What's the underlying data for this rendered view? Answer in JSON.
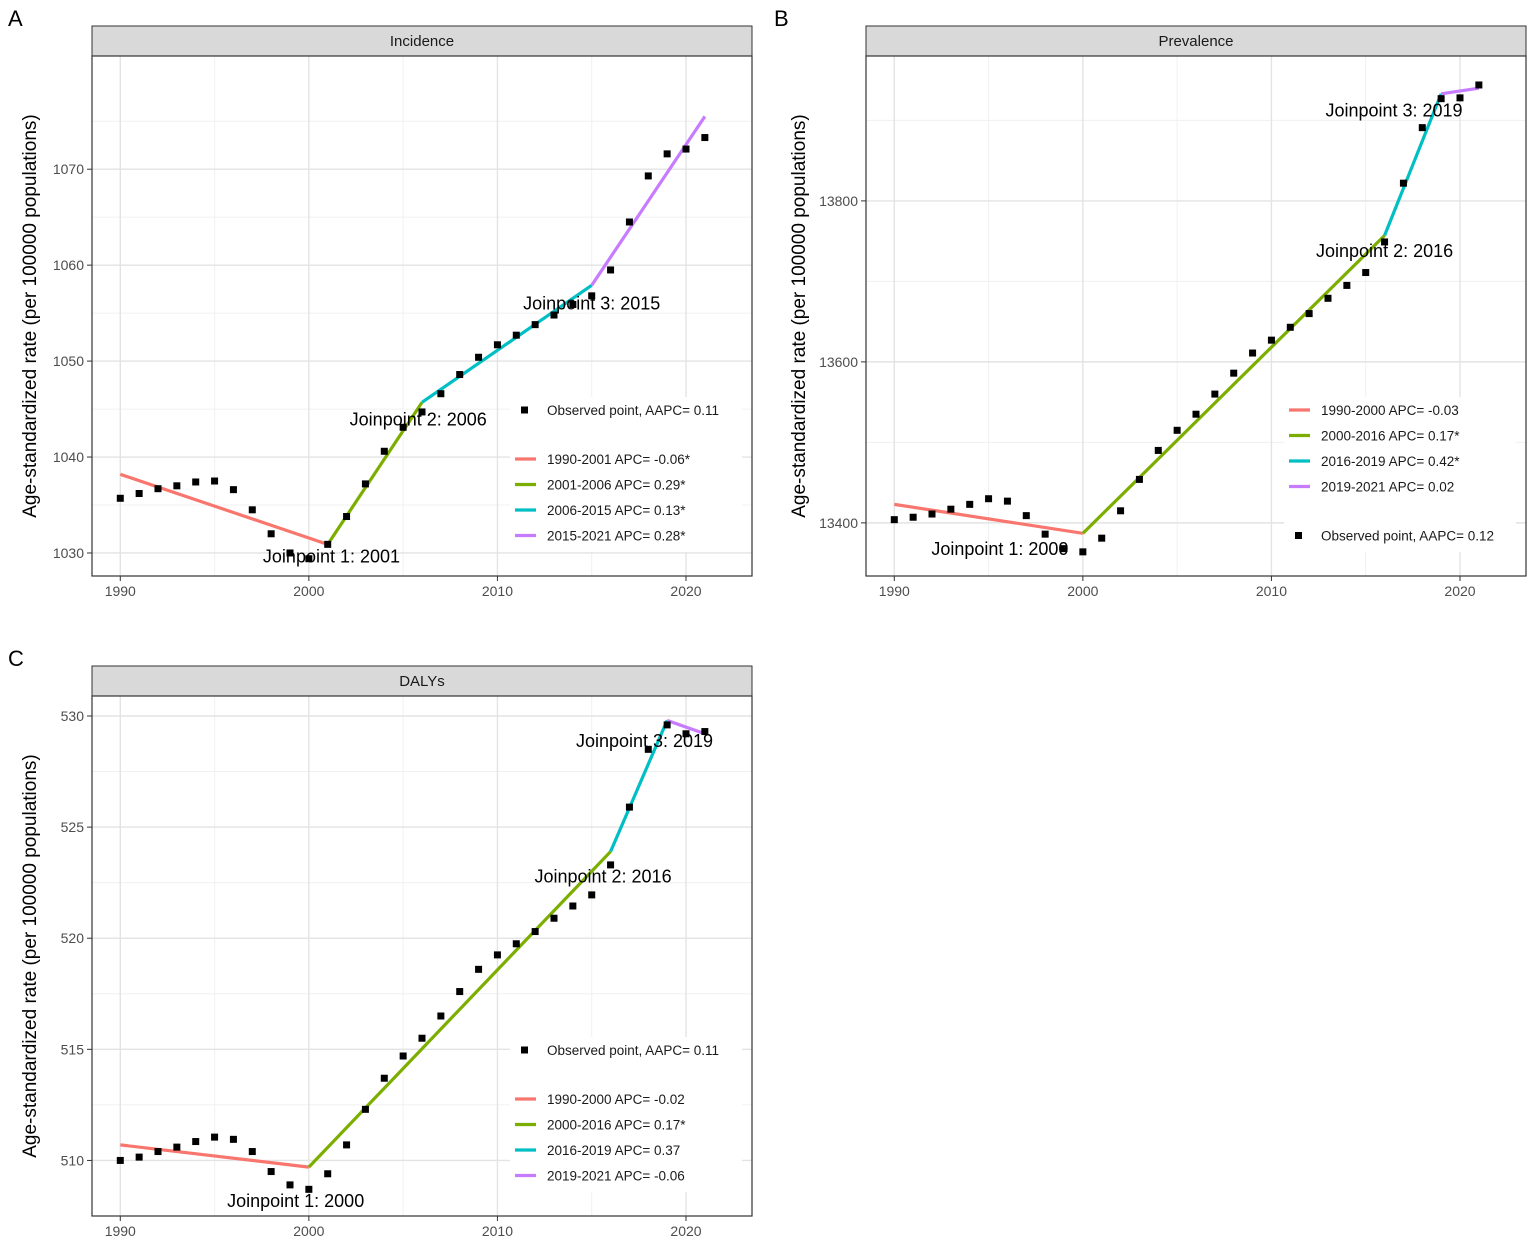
{
  "chart_data": [
    {
      "type": "line",
      "panel_label": "A",
      "title": "Incidence",
      "xlabel": "",
      "ylabel": "Age-standardized rate (per 100000 populations)",
      "xlim": [
        1988.5,
        2023.5
      ],
      "ylim": [
        1027.6,
        1081.8
      ],
      "xticks": [
        1990,
        2000,
        2010,
        2020
      ],
      "yticks": [
        1030,
        1040,
        1050,
        1060,
        1070
      ],
      "observed": {
        "x": [
          1990,
          1991,
          1992,
          1993,
          1994,
          1995,
          1996,
          1997,
          1998,
          1999,
          2000,
          2001,
          2002,
          2003,
          2004,
          2005,
          2006,
          2007,
          2008,
          2009,
          2010,
          2011,
          2012,
          2013,
          2014,
          2015,
          2016,
          2017,
          2018,
          2019,
          2020,
          2021
        ],
        "y": [
          1035.7,
          1036.2,
          1036.7,
          1037.0,
          1037.4,
          1037.5,
          1036.6,
          1034.5,
          1032.0,
          1030.0,
          1029.4,
          1030.9,
          1033.8,
          1037.2,
          1040.6,
          1043.1,
          1044.7,
          1046.6,
          1048.6,
          1050.4,
          1051.7,
          1052.7,
          1053.8,
          1054.8,
          1055.9,
          1056.8,
          1059.5,
          1064.5,
          1069.3,
          1071.6,
          1072.1,
          1073.3
        ]
      },
      "series": [
        {
          "name": "1990-2001 APC= -0.06*",
          "color": "#F8766D",
          "x": [
            1990,
            2001
          ],
          "y": [
            1038.2,
            1030.9
          ]
        },
        {
          "name": "2001-2006 APC= 0.29*",
          "color": "#7CAE00",
          "x": [
            2001,
            2006
          ],
          "y": [
            1030.9,
            1045.7
          ]
        },
        {
          "name": "2006-2015 APC= 0.13*",
          "color": "#00BFC4",
          "x": [
            2006,
            2015
          ],
          "y": [
            1045.7,
            1057.9
          ]
        },
        {
          "name": "2015-2021 APC= 0.28*",
          "color": "#C77CFF",
          "x": [
            2015,
            2021
          ],
          "y": [
            1057.9,
            1075.5
          ]
        }
      ],
      "observed_legend": "Observed point, AAPC= 0.11",
      "legend_order": "observed-first",
      "annotations": [
        {
          "text": "Joinpoint 1: 2001",
          "x": 2001.2,
          "y": 1029.0
        },
        {
          "text": "Joinpoint 2: 2006",
          "x": 2005.8,
          "y": 1043.3
        },
        {
          "text": "Joinpoint 3: 2015",
          "x": 2015.0,
          "y": 1055.4
        }
      ]
    },
    {
      "type": "line",
      "panel_label": "B",
      "title": "Prevalence",
      "xlabel": "",
      "ylabel": "Age-standardized rate (per 100000 populations)",
      "xlim": [
        1988.5,
        2023.5
      ],
      "ylim": [
        13334,
        13980
      ],
      "xticks": [
        1990,
        2000,
        2010,
        2020
      ],
      "yticks": [
        13400,
        13600,
        13800
      ],
      "observed": {
        "x": [
          1990,
          1991,
          1992,
          1993,
          1994,
          1995,
          1996,
          1997,
          1998,
          1999,
          2000,
          2001,
          2002,
          2003,
          2004,
          2005,
          2006,
          2007,
          2008,
          2009,
          2010,
          2011,
          2012,
          2013,
          2014,
          2015,
          2016,
          2017,
          2018,
          2019,
          2020,
          2021
        ],
        "y": [
          13404,
          13407,
          13411,
          13417,
          13423,
          13430,
          13427,
          13409,
          13386,
          13368,
          13364,
          13381,
          13415,
          13454,
          13490,
          13515,
          13535,
          13560,
          13586,
          13611,
          13627,
          13643,
          13660,
          13679,
          13695,
          13711,
          13749,
          13822,
          13891,
          13927,
          13928,
          13944
        ]
      },
      "series": [
        {
          "name": "1990-2000 APC= -0.03",
          "color": "#F8766D",
          "x": [
            1990,
            2000
          ],
          "y": [
            13423,
            13387
          ]
        },
        {
          "name": "2000-2016 APC= 0.17*",
          "color": "#7CAE00",
          "x": [
            2000,
            2016
          ],
          "y": [
            13387,
            13757
          ]
        },
        {
          "name": "2016-2019 APC= 0.42*",
          "color": "#00BFC4",
          "x": [
            2016,
            2019
          ],
          "y": [
            13757,
            13933
          ]
        },
        {
          "name": "2019-2021 APC= 0.02",
          "color": "#C77CFF",
          "x": [
            2019,
            2021
          ],
          "y": [
            13933,
            13940
          ]
        }
      ],
      "observed_legend": "Observed point, AAPC= 0.12",
      "legend_order": "observed-last",
      "annotations": [
        {
          "text": "Joinpoint 1: 2000",
          "x": 1995.6,
          "y": 13360
        },
        {
          "text": "Joinpoint 2: 2016",
          "x": 2016.0,
          "y": 13730
        },
        {
          "text": "Joinpoint 3: 2019",
          "x": 2016.5,
          "y": 13905
        }
      ]
    },
    {
      "type": "line",
      "panel_label": "C",
      "title": "DALYs",
      "xlabel": "",
      "ylabel": "Age-standardized rate (per 100000 populations)",
      "xlim": [
        1988.5,
        2023.5
      ],
      "ylim": [
        507.5,
        530.9
      ],
      "xticks": [
        1990,
        2000,
        2010,
        2020
      ],
      "yticks": [
        510,
        515,
        520,
        525,
        530
      ],
      "observed": {
        "x": [
          1990,
          1991,
          1992,
          1993,
          1994,
          1995,
          1996,
          1997,
          1998,
          1999,
          2000,
          2001,
          2002,
          2003,
          2004,
          2005,
          2006,
          2007,
          2008,
          2009,
          2010,
          2011,
          2012,
          2013,
          2014,
          2015,
          2016,
          2017,
          2018,
          2019,
          2020,
          2021
        ],
        "y": [
          510.0,
          510.15,
          510.4,
          510.6,
          510.85,
          511.05,
          510.95,
          510.4,
          509.5,
          508.9,
          508.7,
          509.4,
          510.7,
          512.3,
          513.7,
          514.7,
          515.5,
          516.5,
          517.6,
          518.6,
          519.25,
          519.75,
          520.3,
          520.9,
          521.45,
          521.95,
          523.3,
          525.9,
          528.5,
          529.6,
          529.2,
          529.3
        ]
      },
      "series": [
        {
          "name": "1990-2000 APC= -0.02",
          "color": "#F8766D",
          "x": [
            1990,
            2000
          ],
          "y": [
            510.7,
            509.7
          ]
        },
        {
          "name": "2000-2016 APC= 0.17*",
          "color": "#7CAE00",
          "x": [
            2000,
            2016
          ],
          "y": [
            509.7,
            523.9
          ]
        },
        {
          "name": "2016-2019 APC= 0.37",
          "color": "#00BFC4",
          "x": [
            2016,
            2019
          ],
          "y": [
            523.9,
            529.8
          ]
        },
        {
          "name": "2019-2021 APC= -0.06",
          "color": "#C77CFF",
          "x": [
            2019,
            2021
          ],
          "y": [
            529.8,
            529.2
          ]
        }
      ],
      "observed_legend": "Observed point, AAPC= 0.11",
      "legend_order": "observed-first",
      "annotations": [
        {
          "text": "Joinpoint 1: 2000",
          "x": 1999.3,
          "y": 507.9
        },
        {
          "text": "Joinpoint 2: 2016",
          "x": 2015.6,
          "y": 522.5
        },
        {
          "text": "Joinpoint 3: 2019",
          "x": 2017.8,
          "y": 528.6
        }
      ]
    }
  ]
}
